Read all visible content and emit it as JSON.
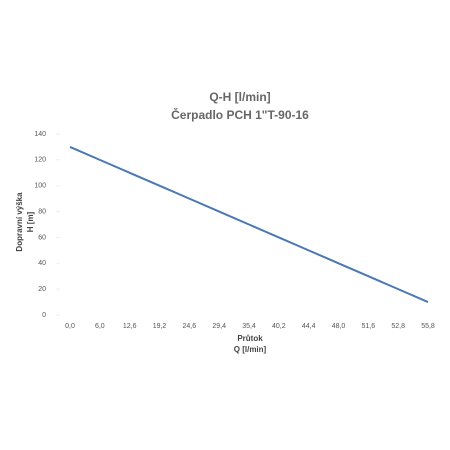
{
  "chart_data": {
    "type": "line",
    "title": "Q-H  [l/min]",
    "subtitle": "Čerpadlo PCH 1\"T-90-16",
    "x_label": [
      "Průtok",
      "Q [l/min]"
    ],
    "y_label": [
      "Dopravní výška",
      "H [m]"
    ],
    "categories": [
      "0,0",
      "6,0",
      "12,6",
      "19,2",
      "24,6",
      "29,4",
      "35,4",
      "40,2",
      "44,4",
      "48,0",
      "51,6",
      "52,8",
      "55,8"
    ],
    "series": [
      {
        "name": "Q-H",
        "color": "#4a78b5",
        "values": [
          130,
          120,
          110,
          100,
          90,
          80,
          70,
          60,
          50,
          40,
          30,
          20,
          10
        ]
      }
    ],
    "ylim": [
      0,
      140
    ],
    "yticks": [
      0,
      20,
      40,
      60,
      80,
      100,
      120,
      140
    ]
  }
}
